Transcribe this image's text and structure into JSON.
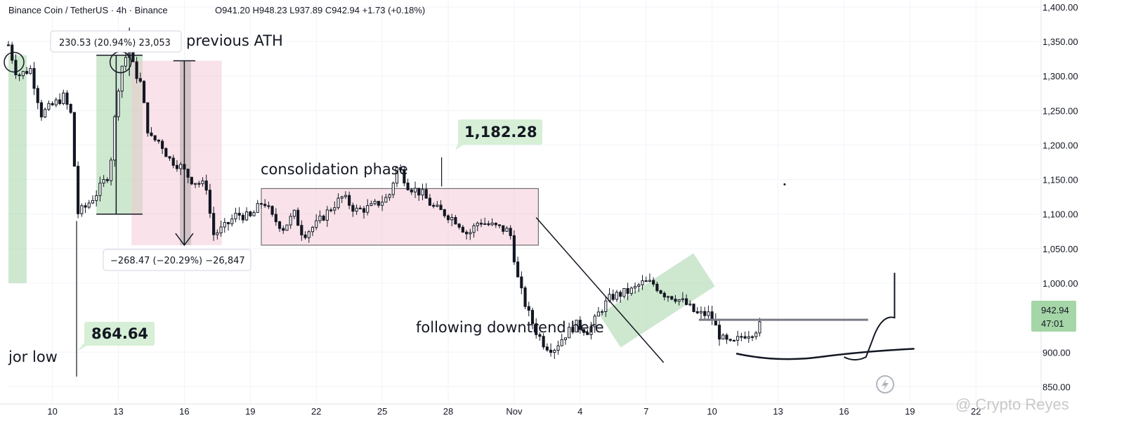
{
  "header": {
    "symbol": "Binance Coin / TetherUS · 4h · Binance",
    "ohlc": "O941.20  H948.23  L937.89  C942.94  +1.73 (+0.18%)"
  },
  "colors": {
    "up": "#131722",
    "down": "#131722",
    "candle_up_fill": "#ffffff",
    "grid": "#f0f3fa",
    "green_box": "#a5d6a7",
    "pink_box": "#f3c6d3",
    "tag_green": "#d6efd6"
  },
  "annotations": {
    "previous_ath": "previous ATH",
    "consolidation": "consolidation phase",
    "downtrend": "following downtrend here",
    "major_low": "jor low",
    "measure_up": "230.53 (20.94%) 23,053",
    "measure_down": "−268.47 (−20.29%) −26,847",
    "tag_high": "1,182.28",
    "tag_low": "864.64",
    "price_tag": "942.94",
    "countdown": "47:01"
  },
  "watermark": "@ Crypto Reyes",
  "chart_data": {
    "type": "candlestick",
    "title": "Binance Coin / TetherUS · 4h · Binance",
    "ylim": [
      825,
      1410
    ],
    "y_ticks": [
      1400,
      1350,
      1300,
      1250,
      1200,
      1150,
      1100,
      1050,
      1000,
      900,
      850
    ],
    "x_ticks": [
      "10",
      "13",
      "16",
      "19",
      "22",
      "25",
      "28",
      "Nov",
      "4",
      "7",
      "10",
      "13",
      "16",
      "19",
      "22"
    ],
    "grid": true,
    "legend": "none",
    "current_price": 942.94,
    "key_levels": {
      "previous_ath": 1340,
      "consolidation_high": 1182.28,
      "major_low": 864.64
    },
    "path": [
      [
        0,
        1345
      ],
      [
        0.4,
        1300
      ],
      [
        1.0,
        1310
      ],
      [
        1.5,
        1245
      ],
      [
        2.5,
        1270
      ],
      [
        2.9,
        1240
      ],
      [
        3.1,
        1100
      ],
      [
        3.5,
        1110
      ],
      [
        4.0,
        1130
      ],
      [
        4.6,
        1160
      ],
      [
        4.9,
        1260
      ],
      [
        5.1,
        1310
      ],
      [
        5.5,
        1340
      ],
      [
        5.7,
        1310
      ],
      [
        6.0,
        1290
      ],
      [
        6.4,
        1210
      ],
      [
        6.9,
        1205
      ],
      [
        7.3,
        1180
      ],
      [
        7.8,
        1170
      ],
      [
        8.3,
        1150
      ],
      [
        9.0,
        1140
      ],
      [
        9.3,
        1070
      ],
      [
        9.8,
        1080
      ],
      [
        10.4,
        1100
      ],
      [
        11.0,
        1095
      ],
      [
        11.6,
        1120
      ],
      [
        12.0,
        1095
      ],
      [
        12.5,
        1080
      ],
      [
        13.0,
        1100
      ],
      [
        13.4,
        1070
      ],
      [
        14.0,
        1085
      ],
      [
        14.7,
        1110
      ],
      [
        15.2,
        1125
      ],
      [
        15.8,
        1105
      ],
      [
        16.5,
        1110
      ],
      [
        17.3,
        1125
      ],
      [
        17.7,
        1170
      ],
      [
        18.2,
        1140
      ],
      [
        18.8,
        1130
      ],
      [
        19.3,
        1110
      ],
      [
        19.9,
        1100
      ],
      [
        20.4,
        1090
      ],
      [
        20.9,
        1070
      ],
      [
        21.4,
        1090
      ],
      [
        21.8,
        1085
      ],
      [
        22.3,
        1080
      ],
      [
        22.8,
        1075
      ],
      [
        23.2,
        1000
      ],
      [
        23.6,
        960
      ],
      [
        24.0,
        930
      ],
      [
        24.4,
        910
      ],
      [
        24.8,
        905
      ],
      [
        25.3,
        925
      ],
      [
        25.8,
        940
      ],
      [
        26.4,
        930
      ],
      [
        26.9,
        960
      ],
      [
        27.4,
        980
      ],
      [
        27.9,
        985
      ],
      [
        28.4,
        990
      ],
      [
        28.8,
        1000
      ],
      [
        29.3,
        1000
      ],
      [
        29.8,
        985
      ],
      [
        30.3,
        980
      ],
      [
        30.8,
        970
      ],
      [
        31.3,
        955
      ],
      [
        31.9,
        955
      ],
      [
        32.4,
        920
      ],
      [
        32.9,
        910
      ],
      [
        33.4,
        925
      ],
      [
        33.9,
        930
      ],
      [
        34.3,
        942.94
      ]
    ]
  }
}
